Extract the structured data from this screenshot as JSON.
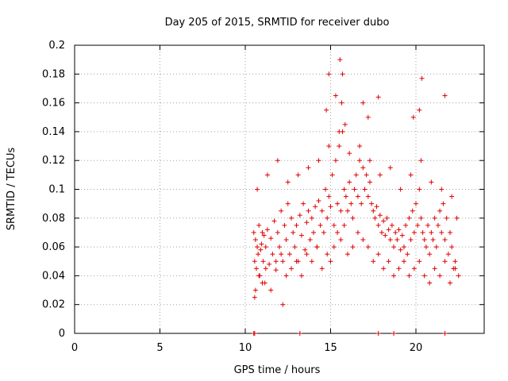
{
  "chart_data": {
    "type": "scatter",
    "title": "Day 205 of 2015, SRMTID for receiver dubo",
    "xlabel": "GPS time / hours",
    "ylabel": "SRMTID / TECUs",
    "xlim": [
      0,
      24
    ],
    "ylim": [
      0,
      0.2
    ],
    "xticks": [
      0,
      5,
      10,
      15,
      20
    ],
    "xtick_labels": [
      "0",
      "5",
      "10",
      "15",
      "20"
    ],
    "yticks": [
      0,
      0.02,
      0.04,
      0.06,
      0.08,
      0.1,
      0.12,
      0.14,
      0.16,
      0.18,
      0.2
    ],
    "ytick_labels": [
      "0",
      "0.02",
      "0.04",
      "0.06",
      "0.08",
      "0.1",
      "0.12",
      "0.14",
      "0.16",
      "0.18",
      "0.2"
    ],
    "grid": true,
    "marker": "+",
    "color": "#e00000",
    "series": [
      {
        "name": "SRMTID",
        "x": [
          10.5,
          10.55,
          10.6,
          10.65,
          10.7,
          10.75,
          10.8,
          10.85,
          10.9,
          10.95,
          11.0,
          11.05,
          11.1,
          11.15,
          11.2,
          11.3,
          11.4,
          11.5,
          11.6,
          11.7,
          11.8,
          11.9,
          12.0,
          12.1,
          12.2,
          12.3,
          12.4,
          12.5,
          12.6,
          12.7,
          12.8,
          12.9,
          13.0,
          13.1,
          13.2,
          13.3,
          13.4,
          13.5,
          13.6,
          13.7,
          13.8,
          13.9,
          14.0,
          14.1,
          14.2,
          14.3,
          14.4,
          14.5,
          14.6,
          14.7,
          14.8,
          14.9,
          15.0,
          15.1,
          15.2,
          15.3,
          15.4,
          15.5,
          15.6,
          15.7,
          15.8,
          15.9,
          16.0,
          16.1,
          16.2,
          16.3,
          16.4,
          16.5,
          16.6,
          16.7,
          16.8,
          16.9,
          17.0,
          17.1,
          17.2,
          17.3,
          17.4,
          17.5,
          17.6,
          17.7,
          17.8,
          17.9,
          18.0,
          18.1,
          18.2,
          18.3,
          18.4,
          18.5,
          18.6,
          18.7,
          18.8,
          18.9,
          19.0,
          19.1,
          19.2,
          19.3,
          19.4,
          19.5,
          19.6,
          19.7,
          19.8,
          19.9,
          20.0,
          20.1,
          20.2,
          20.3,
          20.4,
          20.5,
          20.6,
          20.7,
          20.8,
          20.9,
          21.0,
          21.1,
          21.2,
          21.3,
          21.4,
          21.5,
          21.6,
          21.7,
          21.8,
          21.9,
          22.0,
          22.1,
          22.2,
          22.3,
          22.4,
          22.5,
          10.6,
          10.8,
          11.0,
          11.2,
          11.5,
          11.8,
          12.1,
          12.4,
          12.7,
          13.0,
          13.3,
          13.6,
          13.9,
          14.2,
          14.5,
          14.8,
          15.0,
          15.2,
          15.4,
          15.6,
          15.8,
          16.0,
          16.3,
          16.6,
          16.9,
          17.2,
          17.5,
          17.8,
          18.1,
          18.4,
          18.7,
          19.0,
          19.3,
          19.6,
          19.9,
          20.2,
          20.5,
          20.8,
          21.1,
          21.4,
          21.7,
          22.0,
          22.3,
          10.7,
          11.3,
          11.9,
          12.5,
          13.1,
          13.7,
          14.3,
          14.9,
          15.5,
          16.1,
          16.7,
          17.3,
          17.9,
          18.5,
          19.1,
          19.7,
          20.3,
          20.9,
          21.5,
          22.1,
          15.55,
          15.7,
          15.65,
          14.9,
          15.3,
          20.35,
          21.7,
          17.8,
          16.9,
          17.2,
          20.2,
          15.85,
          14.75,
          19.85,
          12.2,
          10.55
        ],
        "y": [
          0.07,
          0.05,
          0.065,
          0.045,
          0.06,
          0.055,
          0.075,
          0.04,
          0.058,
          0.062,
          0.07,
          0.05,
          0.068,
          0.035,
          0.06,
          0.072,
          0.048,
          0.066,
          0.055,
          0.078,
          0.044,
          0.07,
          0.06,
          0.085,
          0.05,
          0.075,
          0.065,
          0.09,
          0.055,
          0.08,
          0.07,
          0.06,
          0.075,
          0.05,
          0.082,
          0.068,
          0.09,
          0.058,
          0.077,
          0.085,
          0.065,
          0.08,
          0.07,
          0.088,
          0.06,
          0.092,
          0.075,
          0.085,
          0.07,
          0.1,
          0.08,
          0.095,
          0.088,
          0.11,
          0.075,
          0.12,
          0.09,
          0.13,
          0.085,
          0.14,
          0.1,
          0.095,
          0.085,
          0.105,
          0.09,
          0.08,
          0.1,
          0.11,
          0.095,
          0.12,
          0.09,
          0.115,
          0.1,
          0.11,
          0.095,
          0.105,
          0.09,
          0.085,
          0.08,
          0.088,
          0.075,
          0.082,
          0.07,
          0.078,
          0.068,
          0.08,
          0.072,
          0.065,
          0.075,
          0.06,
          0.07,
          0.065,
          0.072,
          0.058,
          0.068,
          0.06,
          0.075,
          0.055,
          0.08,
          0.065,
          0.085,
          0.07,
          0.09,
          0.075,
          0.1,
          0.08,
          0.07,
          0.065,
          0.06,
          0.075,
          0.055,
          0.07,
          0.065,
          0.08,
          0.06,
          0.075,
          0.085,
          0.07,
          0.09,
          0.065,
          0.08,
          0.055,
          0.07,
          0.06,
          0.045,
          0.05,
          0.08,
          0.04,
          0.03,
          0.04,
          0.035,
          0.045,
          0.03,
          0.05,
          0.055,
          0.04,
          0.045,
          0.05,
          0.04,
          0.055,
          0.05,
          0.06,
          0.045,
          0.055,
          0.05,
          0.06,
          0.07,
          0.065,
          0.075,
          0.055,
          0.06,
          0.07,
          0.065,
          0.06,
          0.05,
          0.055,
          0.045,
          0.05,
          0.04,
          0.045,
          0.05,
          0.04,
          0.045,
          0.05,
          0.04,
          0.035,
          0.045,
          0.04,
          0.05,
          0.035,
          0.045,
          0.1,
          0.11,
          0.12,
          0.105,
          0.11,
          0.115,
          0.12,
          0.13,
          0.14,
          0.125,
          0.13,
          0.12,
          0.11,
          0.115,
          0.1,
          0.11,
          0.12,
          0.105,
          0.1,
          0.095,
          0.19,
          0.18,
          0.16,
          0.18,
          0.165,
          0.177,
          0.165,
          0.164,
          0.16,
          0.15,
          0.155,
          0.145,
          0.155,
          0.15,
          0.02,
          0.025
        ]
      }
    ],
    "bottom_markers_x": [
      10.5,
      10.55,
      13.2,
      17.8,
      18.7,
      21.7
    ]
  }
}
